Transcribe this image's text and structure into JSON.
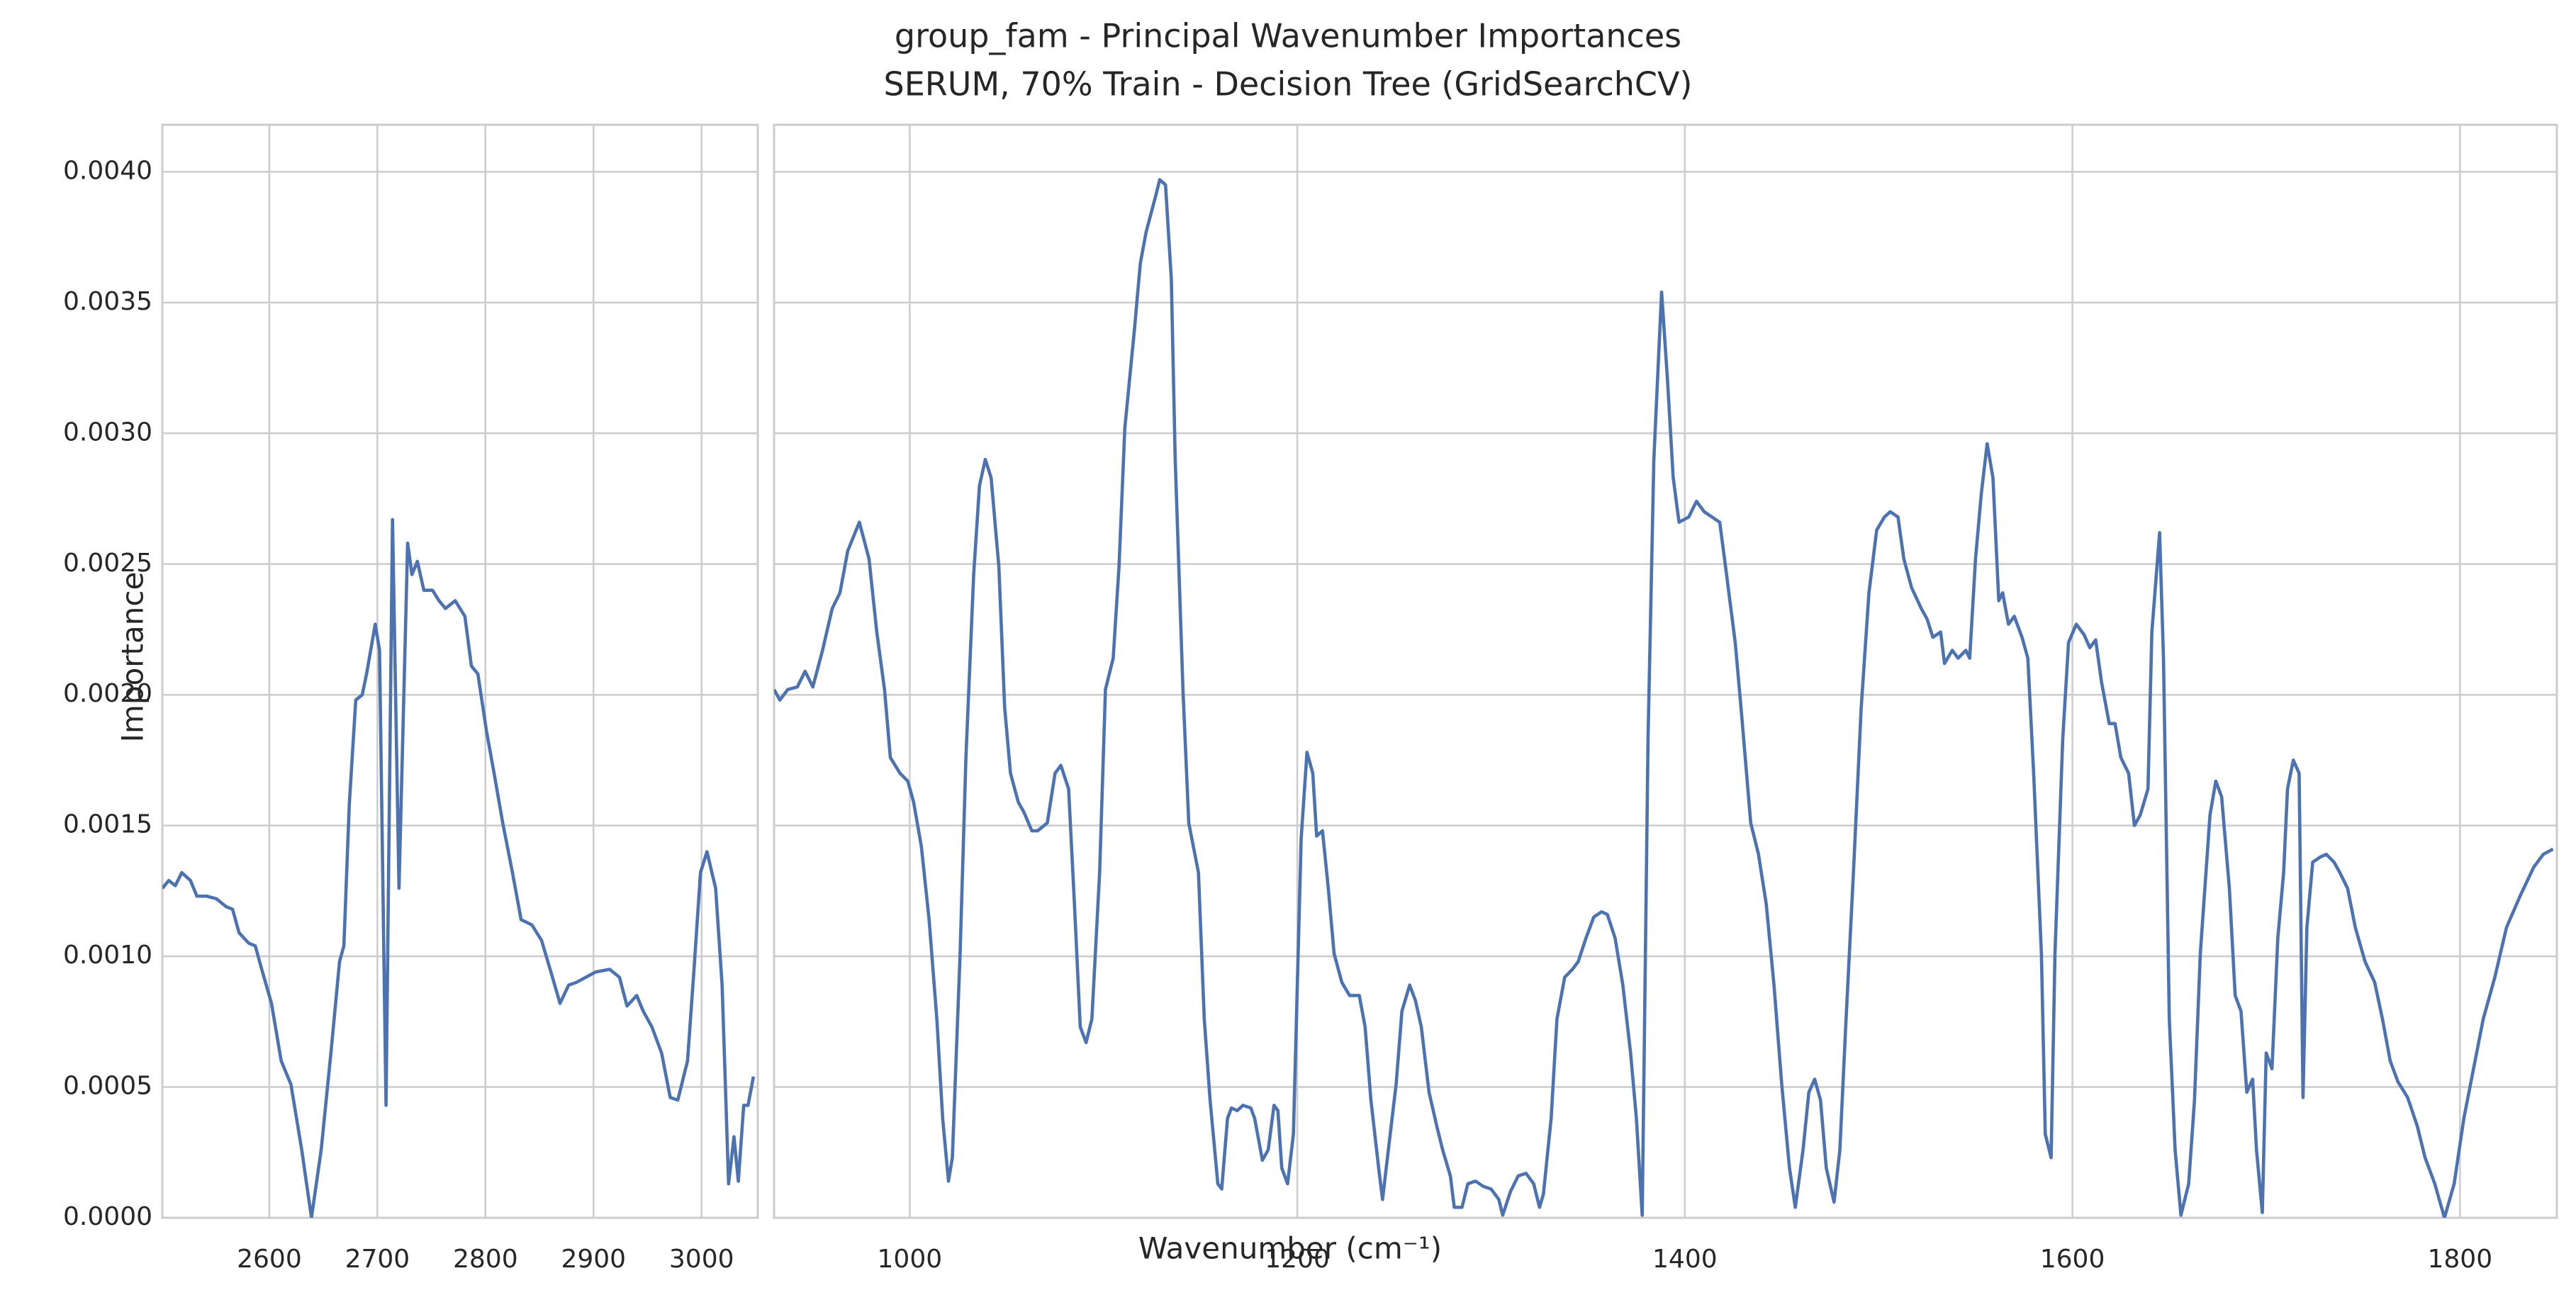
{
  "chart_data": {
    "type": "line",
    "title": "group_fam - Principal Wavenumber Importances",
    "subtitle": "SERUM, 70% Train - Decision Tree (GridSearchCV)",
    "xlabel": "Wavenumber (cm⁻¹)",
    "ylabel": "Importance",
    "color": "#4c72b0",
    "grid": true,
    "ylim": [
      0,
      0.00418
    ],
    "yticks": [
      {
        "value": 0,
        "label": "0.0000"
      },
      {
        "value": 0.0005,
        "label": "0.0005"
      },
      {
        "value": 0.001,
        "label": "0.0010"
      },
      {
        "value": 0.0015,
        "label": "0.0015"
      },
      {
        "value": 0.002,
        "label": "0.0020"
      },
      {
        "value": 0.0025,
        "label": "0.0025"
      },
      {
        "value": 0.003,
        "label": "0.0030"
      },
      {
        "value": 0.0035,
        "label": "0.0035"
      },
      {
        "value": 0.004,
        "label": "0.0040"
      }
    ],
    "panels": [
      {
        "xlim": [
          2501,
          3052
        ],
        "xticks": [
          2600,
          2700,
          2800,
          2900,
          3000
        ],
        "x": [
          2501,
          2507,
          2513,
          2519,
          2527,
          2533,
          2542,
          2551,
          2560,
          2566,
          2572,
          2581,
          2587,
          2593,
          2602,
          2611,
          2620,
          2630,
          2639,
          2648,
          2657,
          2665,
          2669,
          2674,
          2680,
          2686,
          2690,
          2698,
          2702,
          2708,
          2714,
          2720,
          2728,
          2732,
          2737,
          2743,
          2751,
          2757,
          2763,
          2772,
          2781,
          2787,
          2793,
          2801,
          2808,
          2816,
          2825,
          2833,
          2843,
          2852,
          2862,
          2869,
          2877,
          2884,
          2893,
          2902,
          2915,
          2924,
          2931,
          2940,
          2946,
          2954,
          2963,
          2971,
          2978,
          2987,
          2993,
          2999,
          3005,
          3013,
          3019,
          3025,
          3030,
          3034,
          3039,
          3043,
          3048
        ],
        "values": [
          0.00126,
          0.00129,
          0.00127,
          0.00132,
          0.00129,
          0.00123,
          0.00123,
          0.00122,
          0.00119,
          0.00118,
          0.00109,
          0.00105,
          0.00104,
          0.00095,
          0.00082,
          0.0006,
          0.00051,
          0.00026,
          0.0,
          0.00026,
          0.00063,
          0.00098,
          0.00104,
          0.00158,
          0.00198,
          0.002,
          0.00208,
          0.00227,
          0.00217,
          0.00043,
          0.00267,
          0.00126,
          0.00258,
          0.00246,
          0.00251,
          0.0024,
          0.0024,
          0.00236,
          0.00233,
          0.00236,
          0.0023,
          0.00211,
          0.00208,
          0.00186,
          0.0017,
          0.00151,
          0.00132,
          0.00114,
          0.00112,
          0.00106,
          0.00092,
          0.00082,
          0.00089,
          0.0009,
          0.00092,
          0.00094,
          0.00095,
          0.00092,
          0.00081,
          0.00085,
          0.00079,
          0.00073,
          0.00063,
          0.00046,
          0.00045,
          0.0006,
          0.00095,
          0.00132,
          0.0014,
          0.00126,
          0.00089,
          0.00013,
          0.00031,
          0.00014,
          0.00043,
          0.00043,
          0.00054
        ]
      },
      {
        "xlim": [
          930,
          1850
        ],
        "xticks": [
          1000,
          1200,
          1400,
          1600,
          1800
        ],
        "x": [
          930,
          933,
          937,
          942,
          946,
          950,
          955,
          960,
          964,
          968,
          974,
          979,
          983,
          987,
          990,
          995,
          999,
          1002,
          1006,
          1010,
          1014,
          1017,
          1020,
          1022,
          1026,
          1029,
          1033,
          1036,
          1039,
          1042,
          1046,
          1049,
          1052,
          1056,
          1059,
          1063,
          1066,
          1071,
          1075,
          1078,
          1082,
          1085,
          1088,
          1091,
          1094,
          1098,
          1101,
          1105,
          1108,
          1111,
          1116,
          1119,
          1122,
          1127,
          1129,
          1132,
          1135,
          1137,
          1141,
          1144,
          1149,
          1152,
          1155,
          1159,
          1161,
          1164,
          1166,
          1169,
          1172,
          1176,
          1178,
          1182,
          1185,
          1188,
          1190,
          1192,
          1195,
          1198,
          1202,
          1205,
          1208,
          1210,
          1213,
          1216,
          1219,
          1223,
          1227,
          1232,
          1235,
          1238,
          1242,
          1244,
          1247,
          1251,
          1254,
          1258,
          1261,
          1264,
          1268,
          1272,
          1275,
          1279,
          1281,
          1285,
          1288,
          1292,
          1296,
          1300,
          1304,
          1306,
          1310,
          1314,
          1318,
          1322,
          1325,
          1327,
          1331,
          1334,
          1338,
          1342,
          1345,
          1349,
          1353,
          1357,
          1360,
          1364,
          1368,
          1372,
          1375,
          1378,
          1381,
          1384,
          1388,
          1391,
          1394,
          1397,
          1402,
          1406,
          1410,
          1414,
          1418,
          1421,
          1426,
          1429,
          1434,
          1438,
          1442,
          1446,
          1450,
          1454,
          1457,
          1461,
          1464,
          1467,
          1470,
          1473,
          1477,
          1480,
          1483,
          1487,
          1491,
          1495,
          1499,
          1503,
          1506,
          1510,
          1513,
          1517,
          1522,
          1525,
          1528,
          1532,
          1534,
          1538,
          1541,
          1545,
          1547,
          1550,
          1553,
          1556,
          1559,
          1562,
          1564,
          1567,
          1570,
          1574,
          1577,
          1580,
          1584,
          1586,
          1589,
          1591,
          1595,
          1598,
          1602,
          1606,
          1609,
          1612,
          1615,
          1619,
          1622,
          1625,
          1629,
          1632,
          1635,
          1639,
          1641,
          1645,
          1647,
          1650,
          1653,
          1656,
          1660,
          1663,
          1666,
          1671,
          1674,
          1677,
          1681,
          1684,
          1687,
          1690,
          1693,
          1695,
          1698,
          1700,
          1703,
          1706,
          1709,
          1711,
          1714,
          1717,
          1719,
          1721,
          1724,
          1728,
          1731,
          1735,
          1738,
          1742,
          1746,
          1751,
          1756,
          1760,
          1764,
          1768,
          1773,
          1778,
          1782,
          1787,
          1792,
          1797,
          1802,
          1807,
          1812,
          1818,
          1824,
          1831,
          1838,
          1843,
          1848
        ],
        "values": [
          0.00202,
          0.00198,
          0.00202,
          0.00203,
          0.00209,
          0.00203,
          0.00217,
          0.00233,
          0.00239,
          0.00255,
          0.00266,
          0.00252,
          0.00224,
          0.00202,
          0.00176,
          0.0017,
          0.00167,
          0.00159,
          0.00142,
          0.00114,
          0.00076,
          0.00038,
          0.00014,
          0.00023,
          0.00101,
          0.00176,
          0.00246,
          0.0028,
          0.0029,
          0.00283,
          0.00249,
          0.00195,
          0.0017,
          0.00159,
          0.00155,
          0.00148,
          0.00148,
          0.00151,
          0.0017,
          0.00173,
          0.00164,
          0.0012,
          0.00073,
          0.00067,
          0.00076,
          0.00132,
          0.00202,
          0.00214,
          0.00249,
          0.00302,
          0.0034,
          0.00365,
          0.00377,
          0.00391,
          0.00397,
          0.00395,
          0.00359,
          0.0029,
          0.00202,
          0.00151,
          0.00132,
          0.00076,
          0.00045,
          0.00013,
          0.00011,
          0.00038,
          0.00042,
          0.00041,
          0.00043,
          0.00042,
          0.00038,
          0.00022,
          0.00026,
          0.00043,
          0.00041,
          0.00019,
          0.00013,
          0.00032,
          0.00145,
          0.00178,
          0.0017,
          0.00146,
          0.00148,
          0.00126,
          0.00101,
          0.0009,
          0.00085,
          0.00085,
          0.00073,
          0.00045,
          0.00019,
          7e-05,
          0.00026,
          0.00051,
          0.00079,
          0.00089,
          0.00083,
          0.00073,
          0.00048,
          0.00035,
          0.00026,
          0.00016,
          4e-05,
          4e-05,
          0.00013,
          0.00014,
          0.00012,
          0.00011,
          7e-05,
          1e-05,
          0.0001,
          0.00016,
          0.00017,
          0.00013,
          4e-05,
          9e-05,
          0.00038,
          0.00076,
          0.00092,
          0.00095,
          0.00098,
          0.00107,
          0.00115,
          0.00117,
          0.00116,
          0.00107,
          0.00089,
          0.00063,
          0.00038,
          1e-05,
          0.00183,
          0.0029,
          0.00354,
          0.00321,
          0.00283,
          0.00266,
          0.00268,
          0.00274,
          0.0027,
          0.00268,
          0.00266,
          0.00249,
          0.0022,
          0.00195,
          0.00151,
          0.00139,
          0.0012,
          0.00089,
          0.00051,
          0.00019,
          4e-05,
          0.00026,
          0.00048,
          0.00053,
          0.00045,
          0.00019,
          6e-05,
          0.00026,
          0.00073,
          0.00132,
          0.00195,
          0.00239,
          0.00263,
          0.00268,
          0.0027,
          0.00268,
          0.00252,
          0.00241,
          0.00233,
          0.00229,
          0.00222,
          0.00224,
          0.00212,
          0.00217,
          0.00214,
          0.00217,
          0.00214,
          0.00252,
          0.00277,
          0.00296,
          0.00283,
          0.00236,
          0.00239,
          0.00227,
          0.0023,
          0.00222,
          0.00214,
          0.0017,
          0.00101,
          0.00032,
          0.00023,
          0.00101,
          0.00183,
          0.0022,
          0.00227,
          0.00223,
          0.00218,
          0.00221,
          0.00205,
          0.00189,
          0.00189,
          0.00176,
          0.0017,
          0.0015,
          0.00154,
          0.00164,
          0.00224,
          0.00262,
          0.00214,
          0.00076,
          0.00026,
          1e-05,
          0.00013,
          0.00045,
          0.00101,
          0.00154,
          0.00167,
          0.00161,
          0.00126,
          0.00085,
          0.00079,
          0.00048,
          0.00053,
          0.00026,
          2e-05,
          0.00063,
          0.00057,
          0.00107,
          0.00132,
          0.00164,
          0.00175,
          0.0017,
          0.00046,
          0.00111,
          0.00136,
          0.00138,
          0.00139,
          0.00136,
          0.00132,
          0.00126,
          0.00111,
          0.00098,
          0.0009,
          0.00076,
          0.0006,
          0.00052,
          0.00046,
          0.00035,
          0.00023,
          0.00013,
          0.0,
          0.00013,
          0.00038,
          0.00057,
          0.00076,
          0.00092,
          0.00111,
          0.00123,
          0.00134,
          0.00139,
          0.00141
        ]
      }
    ]
  }
}
